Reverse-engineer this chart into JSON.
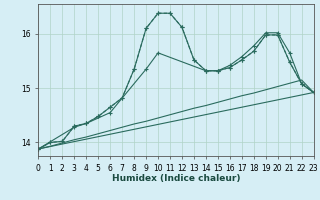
{
  "title": "",
  "xlabel": "Humidex (Indice chaleur)",
  "bg_color": "#d6eef5",
  "grid_color": "#b0d4c8",
  "line_color": "#2a6b5e",
  "xlim": [
    0,
    23
  ],
  "ylim": [
    13.75,
    16.55
  ],
  "yticks": [
    14,
    15,
    16
  ],
  "xticks": [
    0,
    1,
    2,
    3,
    4,
    5,
    6,
    7,
    8,
    9,
    10,
    11,
    12,
    13,
    14,
    15,
    16,
    17,
    18,
    19,
    20,
    21,
    22,
    23
  ],
  "line1_x": [
    0,
    1,
    2,
    3,
    4,
    5,
    6,
    7,
    8,
    9,
    10,
    11,
    12,
    13,
    14,
    15,
    16,
    17,
    18,
    19,
    20,
    21,
    22,
    23
  ],
  "line1_y": [
    13.88,
    14.0,
    14.02,
    14.3,
    14.35,
    14.48,
    14.65,
    14.82,
    15.35,
    16.1,
    16.38,
    16.38,
    16.12,
    15.52,
    15.32,
    15.32,
    15.38,
    15.52,
    15.68,
    15.98,
    15.98,
    15.48,
    15.08,
    14.92
  ],
  "line2_x": [
    0,
    1,
    2,
    3,
    4,
    5,
    6,
    7,
    8,
    9,
    10,
    11,
    12,
    13,
    14,
    15,
    16,
    17,
    18,
    19,
    20,
    21,
    22,
    23
  ],
  "line2_y": [
    13.88,
    14.0,
    14.02,
    14.3,
    14.35,
    14.48,
    14.65,
    14.82,
    15.35,
    16.1,
    16.38,
    16.38,
    16.12,
    15.52,
    15.32,
    15.32,
    15.42,
    15.58,
    15.78,
    16.02,
    16.02,
    15.65,
    15.08,
    14.92
  ],
  "line3_x": [
    0,
    3,
    4,
    6,
    9,
    10,
    14,
    15,
    16,
    17,
    18,
    19,
    20,
    21,
    22,
    23
  ],
  "line3_y": [
    13.88,
    14.28,
    14.35,
    14.55,
    15.35,
    15.65,
    15.32,
    15.32,
    15.38,
    15.52,
    15.68,
    15.98,
    15.98,
    15.48,
    15.08,
    14.92
  ],
  "line4_x": [
    0,
    23
  ],
  "line4_y": [
    13.88,
    14.92
  ],
  "line5_x": [
    0,
    1,
    2,
    3,
    4,
    5,
    6,
    7,
    8,
    9,
    10,
    11,
    12,
    13,
    14,
    15,
    16,
    17,
    18,
    19,
    20,
    21,
    22,
    23
  ],
  "line5_y": [
    13.88,
    13.93,
    13.99,
    14.05,
    14.1,
    14.16,
    14.22,
    14.28,
    14.34,
    14.39,
    14.45,
    14.51,
    14.57,
    14.63,
    14.68,
    14.74,
    14.8,
    14.86,
    14.91,
    14.97,
    15.03,
    15.09,
    15.15,
    14.92
  ]
}
